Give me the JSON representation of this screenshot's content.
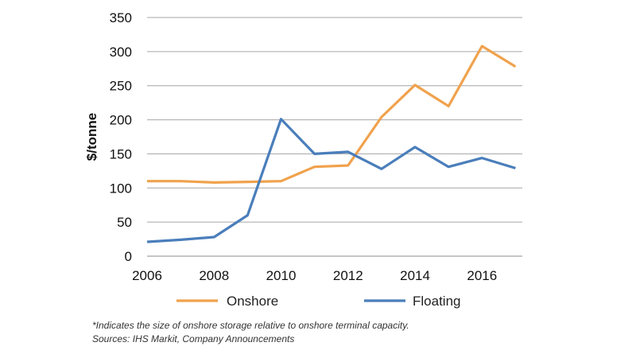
{
  "chart_data": {
    "type": "line",
    "title": "",
    "xlabel": "",
    "ylabel": "$/tonne",
    "x": [
      2006,
      2007,
      2008,
      2009,
      2010,
      2011,
      2012,
      2013,
      2014,
      2015,
      2016,
      2017
    ],
    "xticks": [
      "2006",
      "2008",
      "2010",
      "2012",
      "2014",
      "2016"
    ],
    "yticks": [
      "0",
      "50",
      "100",
      "150",
      "200",
      "250",
      "300",
      "350"
    ],
    "ylim": [
      0,
      350
    ],
    "grid": true,
    "legend": "bottom",
    "series": [
      {
        "name": "Onshore",
        "color": "#F0A24D",
        "values": [
          110,
          110,
          108,
          109,
          110,
          131,
          133,
          204,
          251,
          220,
          308,
          278
        ]
      },
      {
        "name": "Floating",
        "color": "#4A7EBB",
        "values": [
          21,
          24,
          28,
          60,
          201,
          150,
          153,
          128,
          160,
          131,
          144,
          129
        ]
      }
    ]
  },
  "footnote": {
    "line1": "*Indicates the size of onshore storage relative to onshore terminal capacity.",
    "line2": "Sources: IHS Markit, Company Announcements"
  }
}
